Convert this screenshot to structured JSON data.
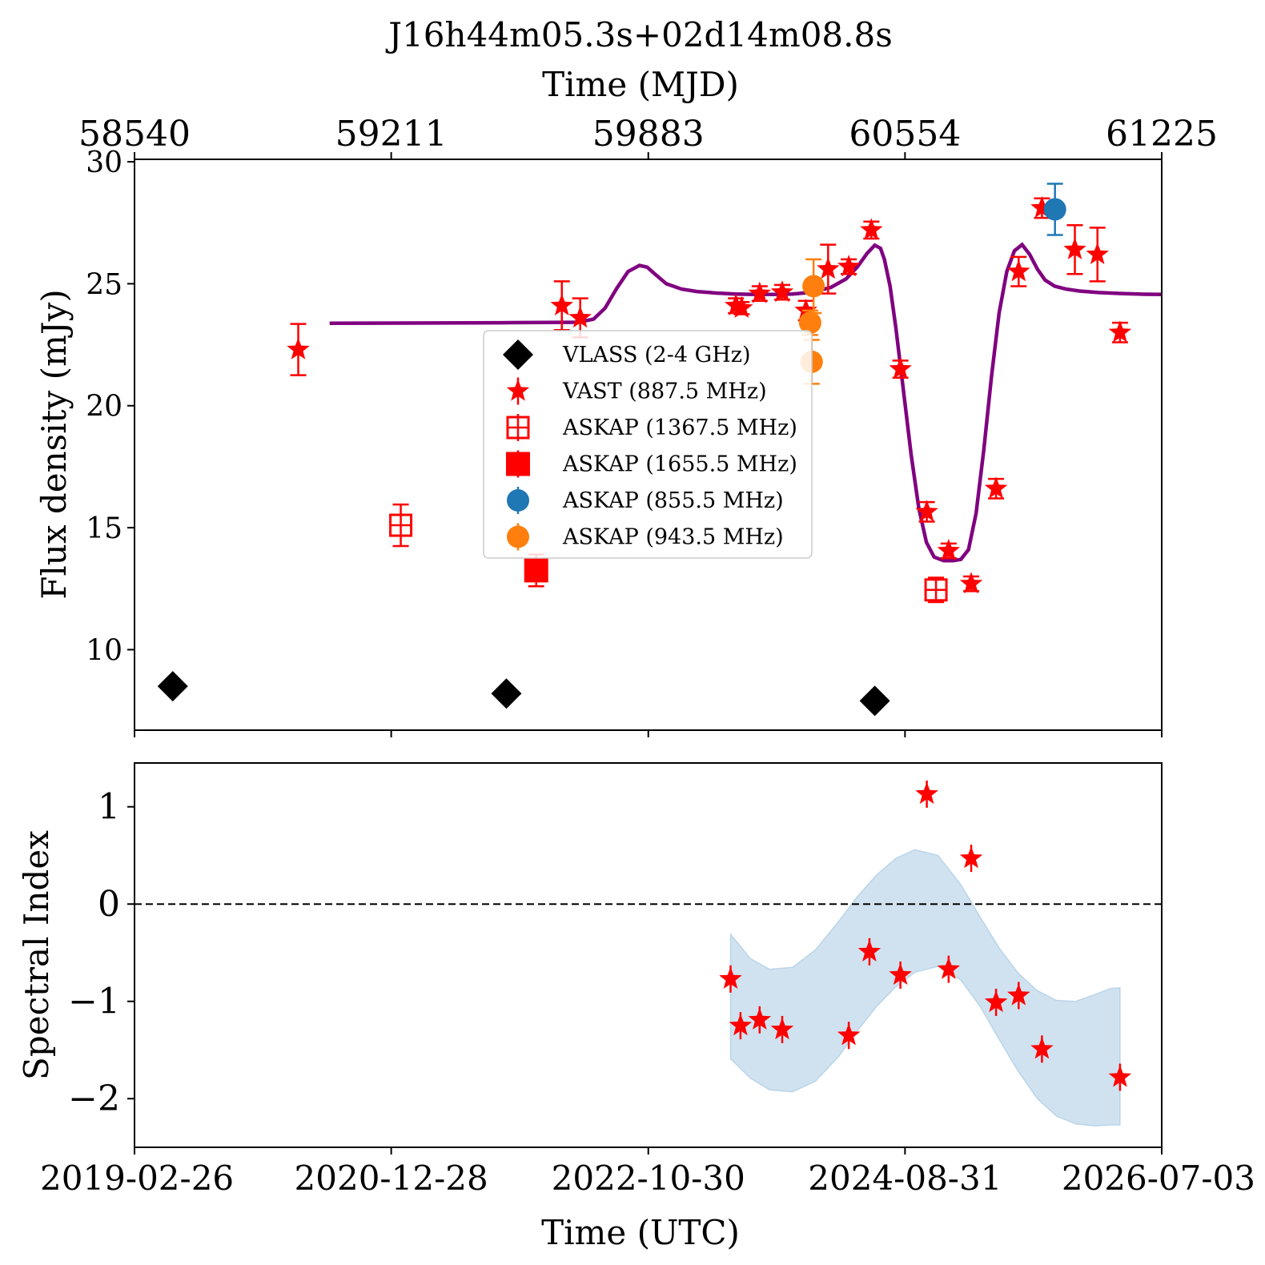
{
  "title": "J16h44m05.3s+02d14m08.8s",
  "colors": {
    "vlass": "#000000",
    "vast": "#ff0000",
    "askap": "#ff0000",
    "askap_855": "#1f77b4",
    "askap_943": "#ff7f0e",
    "model": "#800080",
    "band": "#a9cbe3"
  },
  "chart_data": [
    {
      "type": "scatter",
      "top_axis": {
        "label": "Time (MJD)",
        "ticks": [
          "58540",
          "59211",
          "59883",
          "60554",
          "61225"
        ]
      },
      "ylabel": "Flux density (mJy)",
      "ylim": [
        6.7,
        30.1
      ],
      "yticks": [
        "10",
        "15",
        "20",
        "25",
        "30"
      ],
      "xlim_mjd": [
        58540,
        61225
      ],
      "legend": {
        "placement": "center",
        "entries": [
          "VLASS (2-4 GHz)",
          "VAST (887.5 MHz)",
          "ASKAP (1367.5 MHz)",
          "ASKAP (1655.5 MHz)",
          "ASKAP (855.5 MHz)",
          "ASKAP (943.5 MHz)"
        ]
      },
      "series": [
        {
          "name": "VLASS (2-4 GHz)",
          "marker": "diamond",
          "points": [
            {
              "mjd": 58640,
              "flux": 8.5
            },
            {
              "mjd": 59512,
              "flux": 8.2
            },
            {
              "mjd": 60475,
              "flux": 7.9
            }
          ]
        },
        {
          "name": "VAST (887.5 MHz)",
          "marker": "star",
          "points": [
            {
              "mjd": 58968,
              "flux": 22.3,
              "err": 1.05
            },
            {
              "mjd": 59657,
              "flux": 24.1,
              "err": 1.0
            },
            {
              "mjd": 59705,
              "flux": 23.6,
              "err": 0.8
            },
            {
              "mjd": 60112,
              "flux": 24.1,
              "err": 0.3
            },
            {
              "mjd": 60127,
              "flux": 24.0,
              "err": 0.25
            },
            {
              "mjd": 60174,
              "flux": 24.6,
              "err": 0.3
            },
            {
              "mjd": 60233,
              "flux": 24.65,
              "err": 0.3
            },
            {
              "mjd": 60295,
              "flux": 23.9,
              "err": 0.4
            },
            {
              "mjd": 60353,
              "flux": 25.6,
              "err": 1.0
            },
            {
              "mjd": 60407,
              "flux": 25.7,
              "err": 0.3
            },
            {
              "mjd": 60466,
              "flux": 27.2,
              "err": 0.35
            },
            {
              "mjd": 60542,
              "flux": 21.5,
              "err": 0.35
            },
            {
              "mjd": 60611,
              "flux": 15.65,
              "err": 0.4
            },
            {
              "mjd": 60668,
              "flux": 14.05,
              "err": 0.3
            },
            {
              "mjd": 60727,
              "flux": 12.7,
              "err": 0.3
            },
            {
              "mjd": 60792,
              "flux": 16.6,
              "err": 0.4
            },
            {
              "mjd": 60851,
              "flux": 25.5,
              "err": 0.6
            },
            {
              "mjd": 60912,
              "flux": 28.1,
              "err": 0.4
            },
            {
              "mjd": 60998,
              "flux": 26.4,
              "err": 1.0
            },
            {
              "mjd": 61057,
              "flux": 26.2,
              "err": 1.1
            },
            {
              "mjd": 61116,
              "flux": 23.0,
              "err": 0.4
            }
          ]
        },
        {
          "name": "ASKAP (1367.5 MHz)",
          "marker": "open-square",
          "points": [
            {
              "mjd": 59236,
              "flux": 15.1,
              "err": 0.85
            },
            {
              "mjd": 60635,
              "flux": 12.45,
              "err": 0.5
            }
          ]
        },
        {
          "name": "ASKAP (1655.5 MHz)",
          "marker": "filled-square",
          "points": [
            {
              "mjd": 59590,
              "flux": 13.25,
              "err": 0.65
            }
          ]
        },
        {
          "name": "ASKAP (855.5 MHz)",
          "marker": "circle",
          "points": [
            {
              "mjd": 60946,
              "flux": 28.05,
              "err": 1.05
            }
          ]
        },
        {
          "name": "ASKAP (943.5 MHz)",
          "marker": "circle",
          "points": [
            {
              "mjd": 60315,
              "flux": 24.9,
              "err": 1.1
            },
            {
              "mjd": 60306,
              "flux": 23.4,
              "err": 0.5
            },
            {
              "mjd": 60310,
              "flux": 21.8,
              "err": 0.9
            }
          ]
        }
      ],
      "model_curve": {
        "mjd": [
          59050,
          59250,
          59500,
          59700,
          59740,
          59770,
          59800,
          59830,
          59860,
          59880,
          59900,
          59930,
          59970,
          60010,
          60060,
          60110,
          60160,
          60210,
          60260,
          60310,
          60360,
          60400,
          60430,
          60455,
          60475,
          60490,
          60500,
          60515,
          60530,
          60550,
          60570,
          60590,
          60610,
          60630,
          60655,
          60680,
          60700,
          60720,
          60740,
          60760,
          60780,
          60800,
          60820,
          60840,
          60860,
          60880,
          60900,
          60920,
          60945,
          60975,
          61010,
          61060,
          61120,
          61180,
          61225
        ],
        "flux": [
          23.38,
          23.39,
          23.4,
          23.42,
          23.55,
          24.0,
          24.8,
          25.5,
          25.75,
          25.68,
          25.4,
          25.0,
          24.78,
          24.68,
          24.62,
          24.58,
          24.56,
          24.56,
          24.58,
          24.65,
          24.85,
          25.2,
          25.7,
          26.25,
          26.58,
          26.45,
          26.0,
          24.9,
          23.2,
          20.6,
          18.0,
          15.8,
          14.4,
          13.8,
          13.65,
          13.65,
          13.7,
          14.1,
          15.6,
          18.2,
          21.2,
          23.8,
          25.5,
          26.35,
          26.6,
          26.2,
          25.6,
          25.15,
          24.9,
          24.78,
          24.7,
          24.64,
          24.6,
          24.57,
          24.56
        ]
      }
    },
    {
      "type": "scatter",
      "xlabel": "Time (UTC)",
      "ylabel": "Spectral Index",
      "ylim": [
        -2.5,
        1.45
      ],
      "yticks": [
        "1",
        "0",
        "−1",
        "−2"
      ],
      "xticks": [
        "2019-02-26",
        "2020-12-28",
        "2022-10-30",
        "2024-08-31",
        "2026-07-03"
      ],
      "reference_line": 0,
      "points": [
        {
          "mjd": 60098,
          "alpha": -0.77
        },
        {
          "mjd": 60124,
          "alpha": -1.25
        },
        {
          "mjd": 60174,
          "alpha": -1.19
        },
        {
          "mjd": 60233,
          "alpha": -1.29
        },
        {
          "mjd": 60407,
          "alpha": -1.35
        },
        {
          "mjd": 60461,
          "alpha": -0.49
        },
        {
          "mjd": 60542,
          "alpha": -0.73
        },
        {
          "mjd": 60611,
          "alpha": 1.13
        },
        {
          "mjd": 60668,
          "alpha": -0.67
        },
        {
          "mjd": 60727,
          "alpha": 0.47
        },
        {
          "mjd": 60792,
          "alpha": -1.01
        },
        {
          "mjd": 60851,
          "alpha": -0.94
        },
        {
          "mjd": 60912,
          "alpha": -1.49
        },
        {
          "mjd": 61116,
          "alpha": -1.78
        }
      ],
      "band": {
        "mjd": [
          60098,
          60150,
          60200,
          60260,
          60320,
          60380,
          60430,
          60480,
          60530,
          60580,
          60640,
          60700,
          60750,
          60800,
          60850,
          60900,
          60950,
          61000,
          61050,
          61090,
          61116
        ],
        "upper": [
          -0.31,
          -0.56,
          -0.67,
          -0.65,
          -0.47,
          -0.18,
          0.08,
          0.3,
          0.47,
          0.56,
          0.5,
          0.2,
          -0.13,
          -0.45,
          -0.71,
          -0.89,
          -0.99,
          -1.0,
          -0.93,
          -0.87,
          -0.86
        ],
        "lower": [
          -1.59,
          -1.79,
          -1.91,
          -1.93,
          -1.82,
          -1.57,
          -1.3,
          -1.05,
          -0.85,
          -0.7,
          -0.64,
          -0.78,
          -1.05,
          -1.39,
          -1.72,
          -2.0,
          -2.18,
          -2.26,
          -2.28,
          -2.27,
          -2.27
        ]
      }
    }
  ]
}
